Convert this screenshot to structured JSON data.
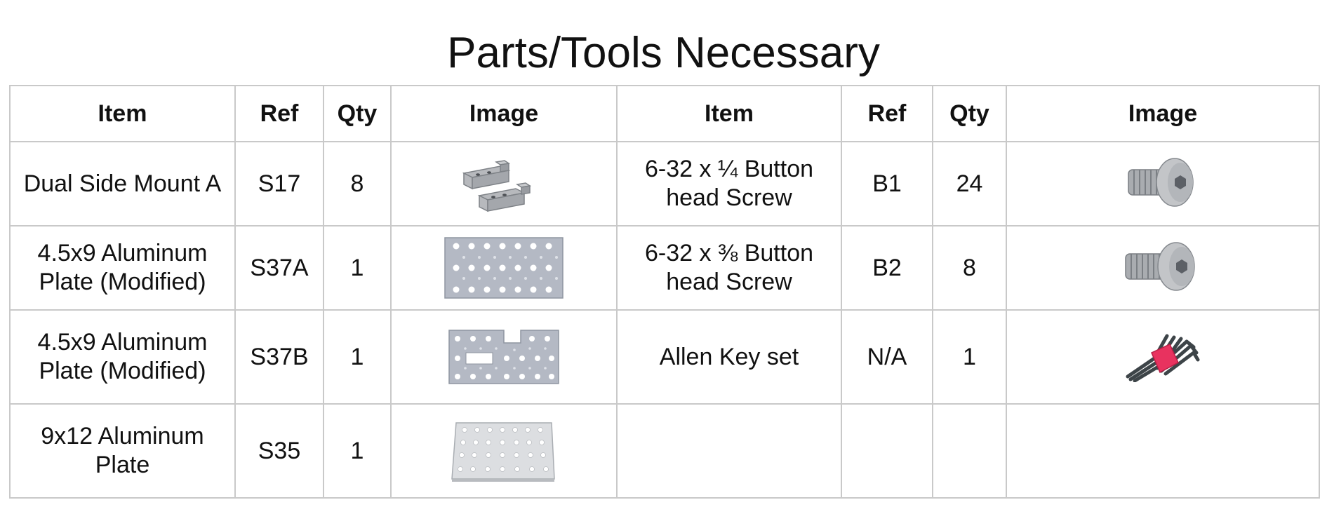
{
  "title": "Parts/Tools Necessary",
  "headers": [
    "Item",
    "Ref",
    "Qty",
    "Image",
    "Item",
    "Ref",
    "Qty",
    "Image"
  ],
  "rows": [
    {
      "left": {
        "item": "Dual Side Mount A",
        "ref": "S17",
        "qty": "8",
        "image_icon": "dual-side-mount-icon"
      },
      "right": {
        "item": "6-32 x ¼ Button head Screw",
        "ref": "B1",
        "qty": "24",
        "image_icon": "button-head-screw-icon"
      }
    },
    {
      "left": {
        "item": "4.5x9 Aluminum Plate (Modified)",
        "ref": "S37A",
        "qty": "1",
        "image_icon": "perforated-plate-icon"
      },
      "right": {
        "item": "6-32 x ⅜ Button head Screw",
        "ref": "B2",
        "qty": "8",
        "image_icon": "button-head-screw-icon"
      }
    },
    {
      "left": {
        "item": "4.5x9 Aluminum Plate (Modified)",
        "ref": "S37B",
        "qty": "1",
        "image_icon": "notched-plate-icon"
      },
      "right": {
        "item": "Allen Key set",
        "ref": "N/A",
        "qty": "1",
        "image_icon": "allen-key-set-icon"
      }
    },
    {
      "left": {
        "item": "9x12 Aluminum Plate",
        "ref": "S35",
        "qty": "1",
        "image_icon": "large-plate-icon"
      },
      "right": {
        "item": "",
        "ref": "",
        "qty": "",
        "image_icon": ""
      }
    }
  ]
}
